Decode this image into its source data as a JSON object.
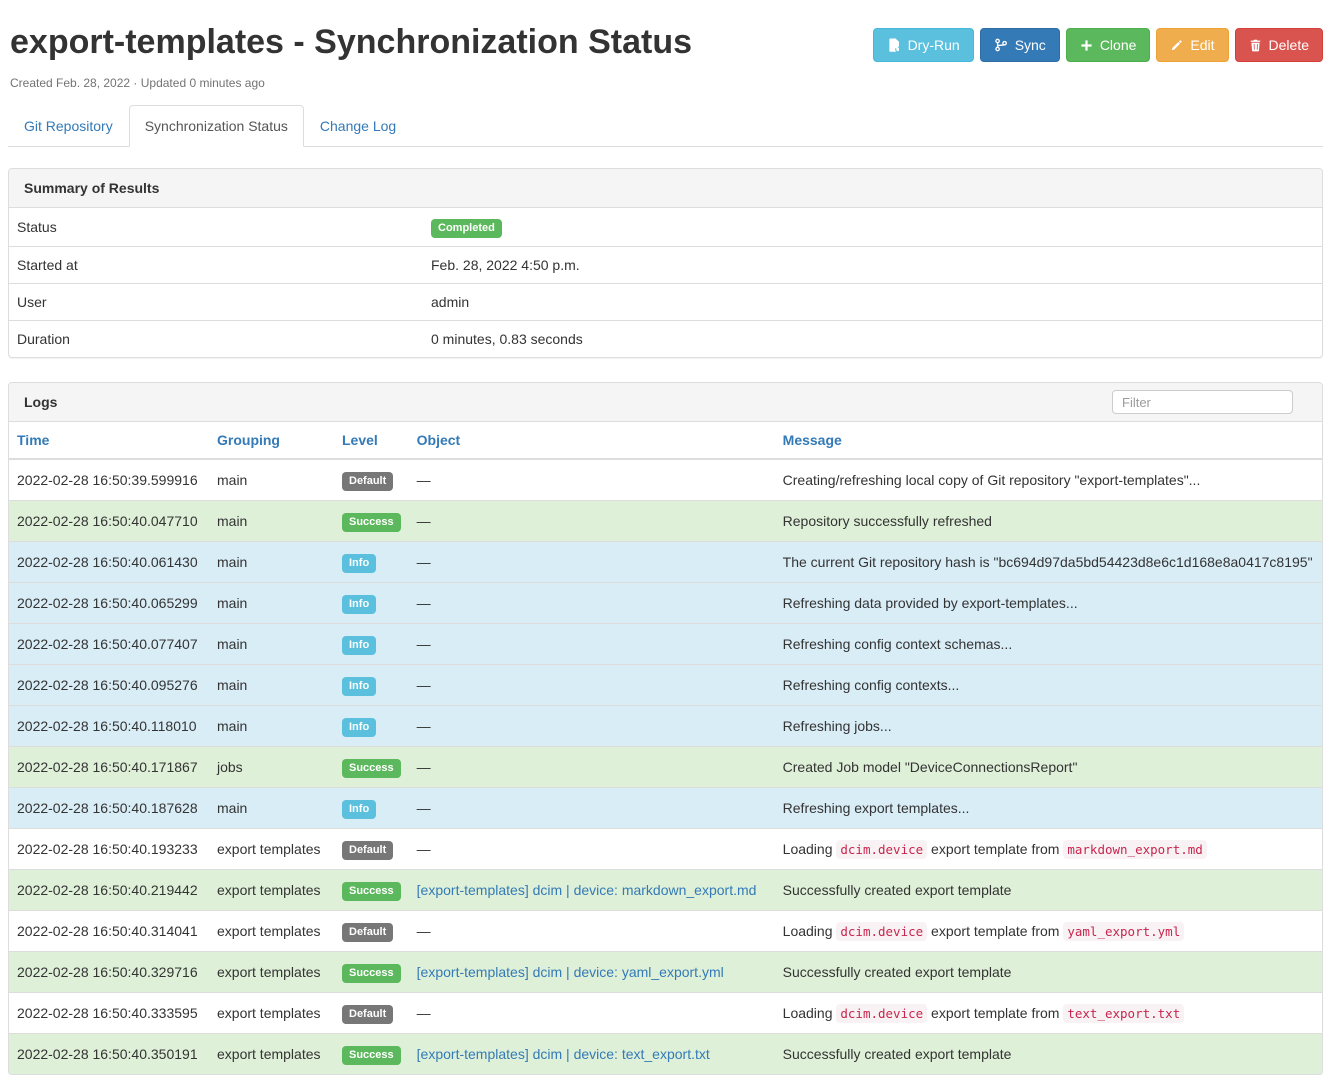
{
  "page": {
    "title": "export-templates - Synchronization Status",
    "meta": "Created Feb. 28, 2022 · Updated 0 minutes ago"
  },
  "toolbar": {
    "buttons": [
      {
        "label": "Dry-Run",
        "icon": "file-refresh-icon",
        "bg": "#5bc0de",
        "border": "#46b8da"
      },
      {
        "label": "Sync",
        "icon": "source-branch-icon",
        "bg": "#337ab7",
        "border": "#2e6da4"
      },
      {
        "label": "Clone",
        "icon": "plus-icon",
        "bg": "#5cb85c",
        "border": "#4cae4c"
      },
      {
        "label": "Edit",
        "icon": "pencil-icon",
        "bg": "#f0ad4e",
        "border": "#eea236"
      },
      {
        "label": "Delete",
        "icon": "trash-icon",
        "bg": "#d9534f",
        "border": "#d43f3a"
      }
    ]
  },
  "tabs": [
    {
      "label": "Git Repository",
      "active": false
    },
    {
      "label": "Synchronization Status",
      "active": true
    },
    {
      "label": "Change Log",
      "active": false
    }
  ],
  "summary": {
    "title": "Summary of Results",
    "rows": [
      {
        "label": "Status",
        "badge": "Completed",
        "badge_bg": "#5cb85c"
      },
      {
        "label": "Started at",
        "value": "Feb. 28, 2022 4:50 p.m."
      },
      {
        "label": "User",
        "value": "admin"
      },
      {
        "label": "Duration",
        "value": "0 minutes, 0.83 seconds"
      }
    ]
  },
  "logs": {
    "title": "Logs",
    "filter_placeholder": "Filter",
    "columns": [
      "Time",
      "Grouping",
      "Level",
      "Object",
      "Message"
    ],
    "level_styles": {
      "Default": {
        "badge_bg": "#777777",
        "row_bg": "#ffffff"
      },
      "Success": {
        "badge_bg": "#5cb85c",
        "row_bg": "#dff0d8"
      },
      "Info": {
        "badge_bg": "#5bc0de",
        "row_bg": "#d9edf7"
      }
    },
    "link_color": "#337ab7",
    "rows": [
      {
        "time": "2022-02-28 16:50:39.599916",
        "grouping": "main",
        "level": "Default",
        "object": null,
        "message": [
          {
            "t": "text",
            "v": "Creating/refreshing local copy of Git repository \"export-templates\"..."
          }
        ]
      },
      {
        "time": "2022-02-28 16:50:40.047710",
        "grouping": "main",
        "level": "Success",
        "object": null,
        "message": [
          {
            "t": "text",
            "v": "Repository successfully refreshed"
          }
        ]
      },
      {
        "time": "2022-02-28 16:50:40.061430",
        "grouping": "main",
        "level": "Info",
        "object": null,
        "message": [
          {
            "t": "text",
            "v": "The current Git repository hash is \"bc694d97da5bd54423d8e6c1d168e8a0417c8195\""
          }
        ]
      },
      {
        "time": "2022-02-28 16:50:40.065299",
        "grouping": "main",
        "level": "Info",
        "object": null,
        "message": [
          {
            "t": "text",
            "v": "Refreshing data provided by export-templates..."
          }
        ]
      },
      {
        "time": "2022-02-28 16:50:40.077407",
        "grouping": "main",
        "level": "Info",
        "object": null,
        "message": [
          {
            "t": "text",
            "v": "Refreshing config context schemas..."
          }
        ]
      },
      {
        "time": "2022-02-28 16:50:40.095276",
        "grouping": "main",
        "level": "Info",
        "object": null,
        "message": [
          {
            "t": "text",
            "v": "Refreshing config contexts..."
          }
        ]
      },
      {
        "time": "2022-02-28 16:50:40.118010",
        "grouping": "main",
        "level": "Info",
        "object": null,
        "message": [
          {
            "t": "text",
            "v": "Refreshing jobs..."
          }
        ]
      },
      {
        "time": "2022-02-28 16:50:40.171867",
        "grouping": "jobs",
        "level": "Success",
        "object": null,
        "message": [
          {
            "t": "text",
            "v": "Created Job model \"DeviceConnectionsReport\""
          }
        ]
      },
      {
        "time": "2022-02-28 16:50:40.187628",
        "grouping": "main",
        "level": "Info",
        "object": null,
        "message": [
          {
            "t": "text",
            "v": "Refreshing export templates..."
          }
        ]
      },
      {
        "time": "2022-02-28 16:50:40.193233",
        "grouping": "export templates",
        "level": "Default",
        "object": null,
        "message": [
          {
            "t": "text",
            "v": "Loading "
          },
          {
            "t": "code",
            "v": "dcim.device"
          },
          {
            "t": "text",
            "v": " export template from "
          },
          {
            "t": "code",
            "v": "markdown_export.md"
          }
        ]
      },
      {
        "time": "2022-02-28 16:50:40.219442",
        "grouping": "export templates",
        "level": "Success",
        "object": "[export-templates] dcim | device: markdown_export.md",
        "message": [
          {
            "t": "text",
            "v": "Successfully created export template"
          }
        ]
      },
      {
        "time": "2022-02-28 16:50:40.314041",
        "grouping": "export templates",
        "level": "Default",
        "object": null,
        "message": [
          {
            "t": "text",
            "v": "Loading "
          },
          {
            "t": "code",
            "v": "dcim.device"
          },
          {
            "t": "text",
            "v": " export template from "
          },
          {
            "t": "code",
            "v": "yaml_export.yml"
          }
        ]
      },
      {
        "time": "2022-02-28 16:50:40.329716",
        "grouping": "export templates",
        "level": "Success",
        "object": "[export-templates] dcim | device: yaml_export.yml",
        "message": [
          {
            "t": "text",
            "v": "Successfully created export template"
          }
        ]
      },
      {
        "time": "2022-02-28 16:50:40.333595",
        "grouping": "export templates",
        "level": "Default",
        "object": null,
        "message": [
          {
            "t": "text",
            "v": "Loading "
          },
          {
            "t": "code",
            "v": "dcim.device"
          },
          {
            "t": "text",
            "v": " export template from "
          },
          {
            "t": "code",
            "v": "text_export.txt"
          }
        ]
      },
      {
        "time": "2022-02-28 16:50:40.350191",
        "grouping": "export templates",
        "level": "Success",
        "object": "[export-templates] dcim | device: text_export.txt",
        "message": [
          {
            "t": "text",
            "v": "Successfully created export template"
          }
        ]
      }
    ]
  }
}
